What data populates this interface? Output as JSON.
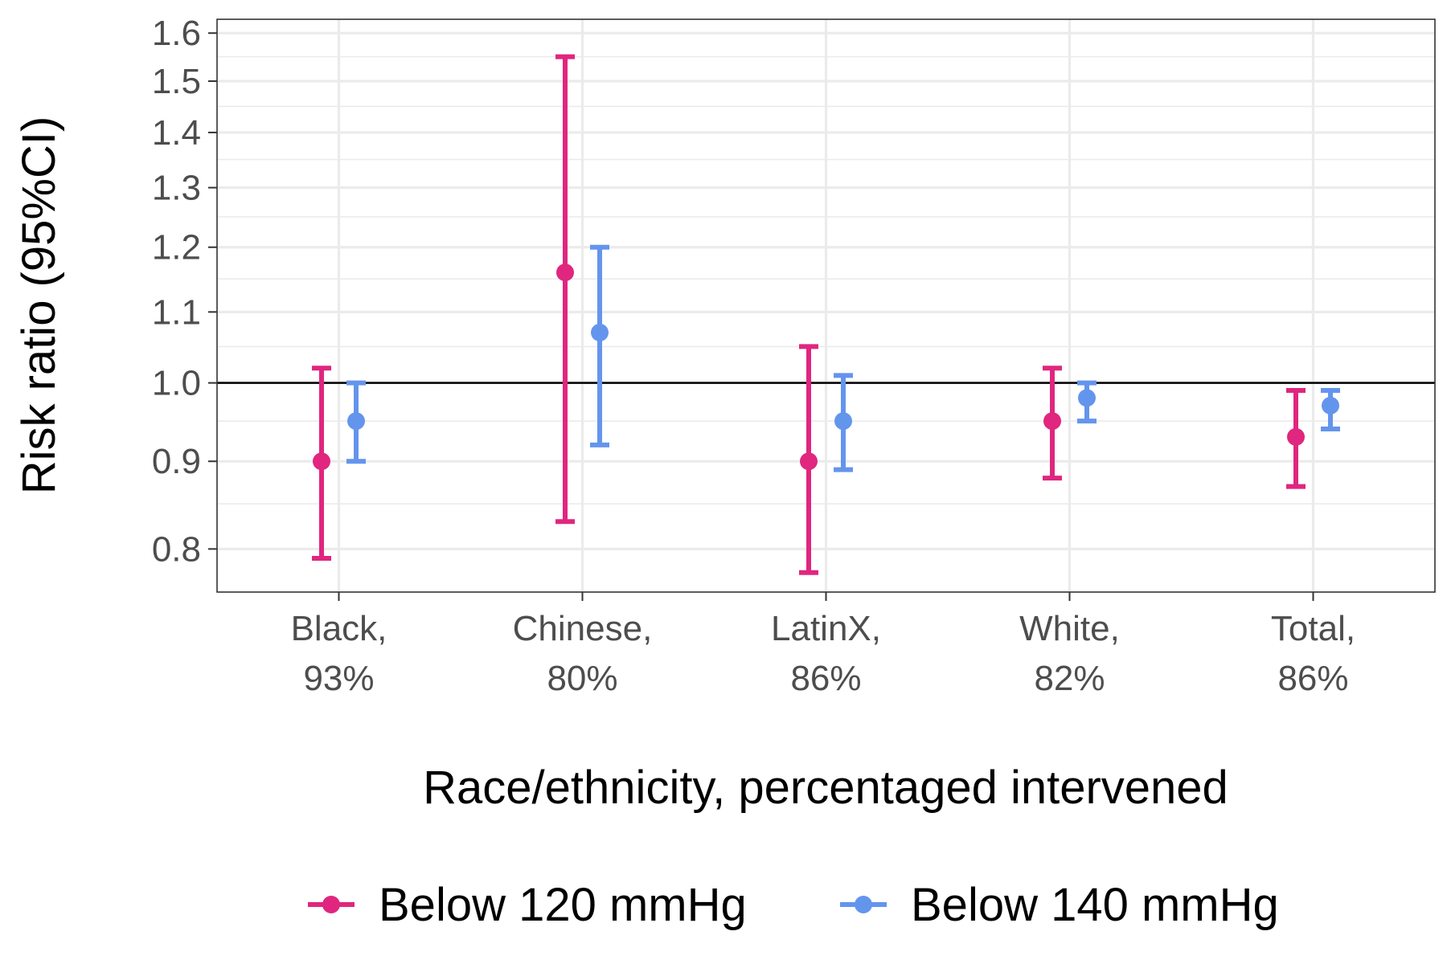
{
  "chart_data": {
    "type": "errorbar",
    "xlabel": "Race/ethnicity, percentaged intervened",
    "ylabel": "Risk ratio (95%CI)",
    "y_scale": "log",
    "ylim": [
      0.755,
      1.63
    ],
    "y_ticks": [
      "0.8",
      "0.9",
      "1.0",
      "1.1",
      "1.2",
      "1.3",
      "1.4",
      "1.5",
      "1.6"
    ],
    "reference_line": 1.0,
    "grid": true,
    "legend_position": "bottom",
    "categories": [
      {
        "name": "Black,",
        "pct": "93%"
      },
      {
        "name": "Chinese,",
        "pct": "80%"
      },
      {
        "name": "LatinX,",
        "pct": "86%"
      },
      {
        "name": "White,",
        "pct": "82%"
      },
      {
        "name": "Total,",
        "pct": "86%"
      }
    ],
    "series": [
      {
        "name": "Below 120 mmHg",
        "color": "#e0267f",
        "points": [
          {
            "est": 0.9,
            "lo": 0.79,
            "hi": 1.02
          },
          {
            "est": 1.16,
            "lo": 0.83,
            "hi": 1.55
          },
          {
            "est": 0.9,
            "lo": 0.775,
            "hi": 1.05
          },
          {
            "est": 0.95,
            "lo": 0.88,
            "hi": 1.02
          },
          {
            "est": 0.93,
            "lo": 0.87,
            "hi": 0.99
          }
        ]
      },
      {
        "name": "Below 140 mmHg",
        "color": "#6495ed",
        "points": [
          {
            "est": 0.95,
            "lo": 0.9,
            "hi": 1.0
          },
          {
            "est": 1.07,
            "lo": 0.92,
            "hi": 1.2
          },
          {
            "est": 0.95,
            "lo": 0.89,
            "hi": 1.01
          },
          {
            "est": 0.98,
            "lo": 0.95,
            "hi": 1.0
          },
          {
            "est": 0.97,
            "lo": 0.94,
            "hi": 0.99
          }
        ]
      }
    ]
  }
}
